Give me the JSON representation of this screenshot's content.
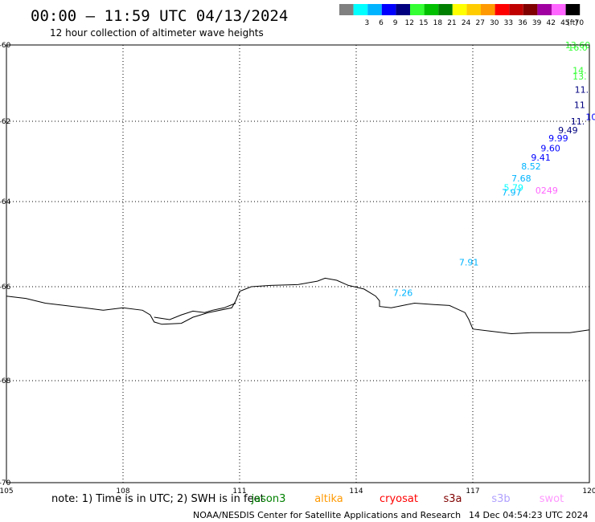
{
  "header": {
    "title": "00:00 – 11:59 UTC 04/13/2024",
    "subtitle": "12 hour collection of altimeter wave heights"
  },
  "legend": {
    "unit": "(ft)",
    "bins": [
      {
        "label": "",
        "color": "#808080"
      },
      {
        "label": "3",
        "color": "#00ffff"
      },
      {
        "label": "6",
        "color": "#00b4ff"
      },
      {
        "label": "9",
        "color": "#0000ff"
      },
      {
        "label": "12",
        "color": "#000080"
      },
      {
        "label": "15",
        "color": "#33ff33"
      },
      {
        "label": "18",
        "color": "#00c000"
      },
      {
        "label": "21",
        "color": "#008000"
      },
      {
        "label": "24",
        "color": "#ffff00"
      },
      {
        "label": "27",
        "color": "#ffcc00"
      },
      {
        "label": "30",
        "color": "#ff9900"
      },
      {
        "label": "33",
        "color": "#ff0000"
      },
      {
        "label": "36",
        "color": "#c00000"
      },
      {
        "label": "39",
        "color": "#800000"
      },
      {
        "label": "42",
        "color": "#a000a0"
      },
      {
        "label": "45",
        "color": "#ff66ff"
      },
      {
        "label": "70",
        "color": "#000000"
      }
    ]
  },
  "map": {
    "lon_range": [
      105,
      120
    ],
    "lat_range": [
      -70,
      -60
    ],
    "lon_ticks": [
      "105",
      "108",
      "111",
      "114",
      "117",
      "120"
    ],
    "lat_ticks": [
      {
        "value": -60,
        "label": "-60"
      },
      {
        "value": -62,
        "label": "-62"
      },
      {
        "value": -64,
        "label": "-64"
      },
      {
        "value": -66,
        "label": "-66"
      },
      {
        "value": -68,
        "label": "-68"
      },
      {
        "value": -70,
        "label": "-70"
      }
    ],
    "coastline": [
      [
        105.0,
        -66.2
      ],
      [
        105.5,
        -66.25
      ],
      [
        106.0,
        -66.35
      ],
      [
        106.5,
        -66.4
      ],
      [
        107.0,
        -66.45
      ],
      [
        107.5,
        -66.5
      ],
      [
        108.0,
        -66.45
      ],
      [
        108.5,
        -66.5
      ],
      [
        108.7,
        -66.6
      ],
      [
        108.8,
        -66.75
      ],
      [
        109.0,
        -66.8
      ],
      [
        109.5,
        -66.78
      ],
      [
        109.8,
        -66.65
      ],
      [
        110.0,
        -66.6
      ],
      [
        110.2,
        -66.55
      ],
      [
        110.5,
        -66.5
      ],
      [
        110.8,
        -66.45
      ],
      [
        110.9,
        -66.3
      ],
      [
        111.0,
        -66.1
      ],
      [
        111.3,
        -66.0
      ],
      [
        111.8,
        -65.97
      ],
      [
        112.5,
        -65.95
      ],
      [
        113.0,
        -65.87
      ],
      [
        113.2,
        -65.8
      ],
      [
        113.5,
        -65.85
      ],
      [
        113.8,
        -65.97
      ],
      [
        114.2,
        -66.05
      ],
      [
        114.5,
        -66.2
      ],
      [
        114.6,
        -66.3
      ],
      [
        114.6,
        -66.42
      ],
      [
        114.9,
        -66.45
      ],
      [
        115.2,
        -66.4
      ],
      [
        115.5,
        -66.35
      ],
      [
        116.0,
        -66.38
      ],
      [
        116.4,
        -66.4
      ],
      [
        116.8,
        -66.55
      ],
      [
        116.9,
        -66.7
      ],
      [
        117.0,
        -66.9
      ],
      [
        117.5,
        -66.95
      ],
      [
        118.0,
        -67.0
      ],
      [
        118.5,
        -66.98
      ],
      [
        119.0,
        -66.98
      ],
      [
        119.5,
        -66.98
      ],
      [
        120.0,
        -66.92
      ]
    ],
    "inlet": [
      [
        108.8,
        -66.65
      ],
      [
        109.2,
        -66.7
      ],
      [
        109.5,
        -66.6
      ],
      [
        109.8,
        -66.52
      ],
      [
        110.1,
        -66.55
      ],
      [
        110.3,
        -66.5
      ],
      [
        110.6,
        -66.45
      ],
      [
        110.9,
        -66.35
      ]
    ],
    "observations": [
      {
        "lon": 116.9,
        "lat": -65.5,
        "text": "7.91",
        "color": "#00b4ff"
      },
      {
        "lon": 115.2,
        "lat": -66.2,
        "text": "7.26",
        "color": "#00b4ff"
      },
      {
        "lon": 118.0,
        "lat": -63.85,
        "text": "7.97",
        "color": "#00b4ff"
      },
      {
        "lon": 118.9,
        "lat": -63.8,
        "text": "0249",
        "color": "#ff66ff"
      },
      {
        "lon": 118.05,
        "lat": -63.73,
        "text": "5.79",
        "color": "#00ffff"
      },
      {
        "lon": 118.25,
        "lat": -63.5,
        "text": "7.68",
        "color": "#00b4ff"
      },
      {
        "lon": 118.5,
        "lat": -63.2,
        "text": "8.52",
        "color": "#00b4ff"
      },
      {
        "lon": 118.75,
        "lat": -62.98,
        "text": "9.41",
        "color": "#0000ff"
      },
      {
        "lon": 119.0,
        "lat": -62.75,
        "text": "9.60",
        "color": "#0000ff"
      },
      {
        "lon": 119.2,
        "lat": -62.5,
        "text": "9.99",
        "color": "#0000ff"
      },
      {
        "lon": 119.45,
        "lat": -62.3,
        "text": "9.49",
        "color": "#000080"
      },
      {
        "lon": 119.7,
        "lat": -62.08,
        "text": "11.",
        "color": "#000080"
      },
      {
        "lon": 120.05,
        "lat": -61.97,
        "text": "10",
        "color": "#0000ff"
      },
      {
        "lon": 119.75,
        "lat": -61.65,
        "text": "11",
        "color": "#000080"
      },
      {
        "lon": 119.8,
        "lat": -61.25,
        "text": "11.",
        "color": "#000080"
      },
      {
        "lon": 119.75,
        "lat": -60.9,
        "text": "13.",
        "color": "#33ff33"
      },
      {
        "lon": 119.75,
        "lat": -60.75,
        "text": "14.",
        "color": "#33ff33"
      },
      {
        "lon": 119.7,
        "lat": -60.15,
        "text": "16.0",
        "color": "#33ff33"
      },
      {
        "lon": 119.7,
        "lat": -60.08,
        "text": "13.60",
        "color": "#33ff33"
      }
    ]
  },
  "footer": {
    "note": "note: 1) Time is in UTC; 2) SWH is in feet",
    "satellites": [
      {
        "name": "jason3",
        "color": "#008000"
      },
      {
        "name": "altika",
        "color": "#ff9900"
      },
      {
        "name": "cryosat",
        "color": "#ff0000"
      },
      {
        "name": "s3a",
        "color": "#800000"
      },
      {
        "name": "s3b",
        "color": "#b0a0ff"
      },
      {
        "name": "swot",
        "color": "#ff99ff"
      }
    ],
    "credit": "NOAA/NESDIS Center for Satellite Applications and Research",
    "timestamp": "14 Dec 04:54:23 UTC 2024"
  }
}
